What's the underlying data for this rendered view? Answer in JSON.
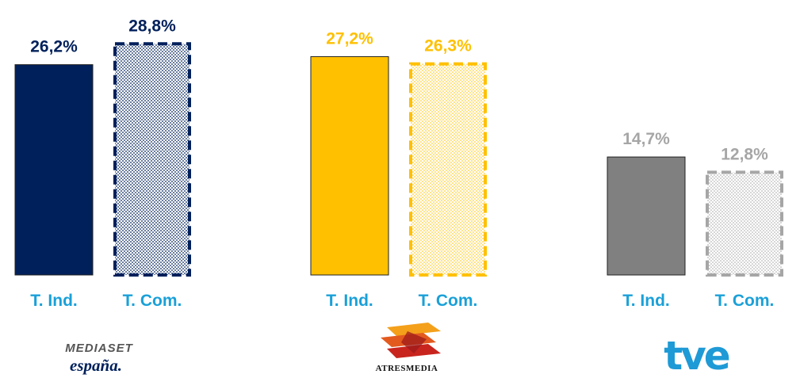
{
  "chart_data": {
    "type": "bar",
    "ylim": [
      0,
      30
    ],
    "categories": [
      "T. Ind.",
      "T. Com."
    ],
    "groups": [
      {
        "logo": "mediaset-logo",
        "logo_text_1": "MEDIASET",
        "logo_text_2": "españa.",
        "color": "#00205b",
        "values": [
          26.2,
          28.8
        ],
        "labels": [
          "26,2%",
          "28,8%"
        ]
      },
      {
        "logo": "atresmedia-logo",
        "logo_text_1": "ATRESMEDIA",
        "color": "#ffc000",
        "values": [
          27.2,
          26.3
        ],
        "labels": [
          "27,2%",
          "26,3%"
        ]
      },
      {
        "logo": "tve-logo",
        "logo_text_1": "tve",
        "color": "#808080",
        "label_color": "#a6a6a6",
        "values": [
          14.7,
          12.8
        ],
        "labels": [
          "14,7%",
          "12,8%"
        ]
      }
    ]
  },
  "colors": {
    "category_label": "#1aa0d8",
    "tve_blue": "#1e9ad6"
  }
}
